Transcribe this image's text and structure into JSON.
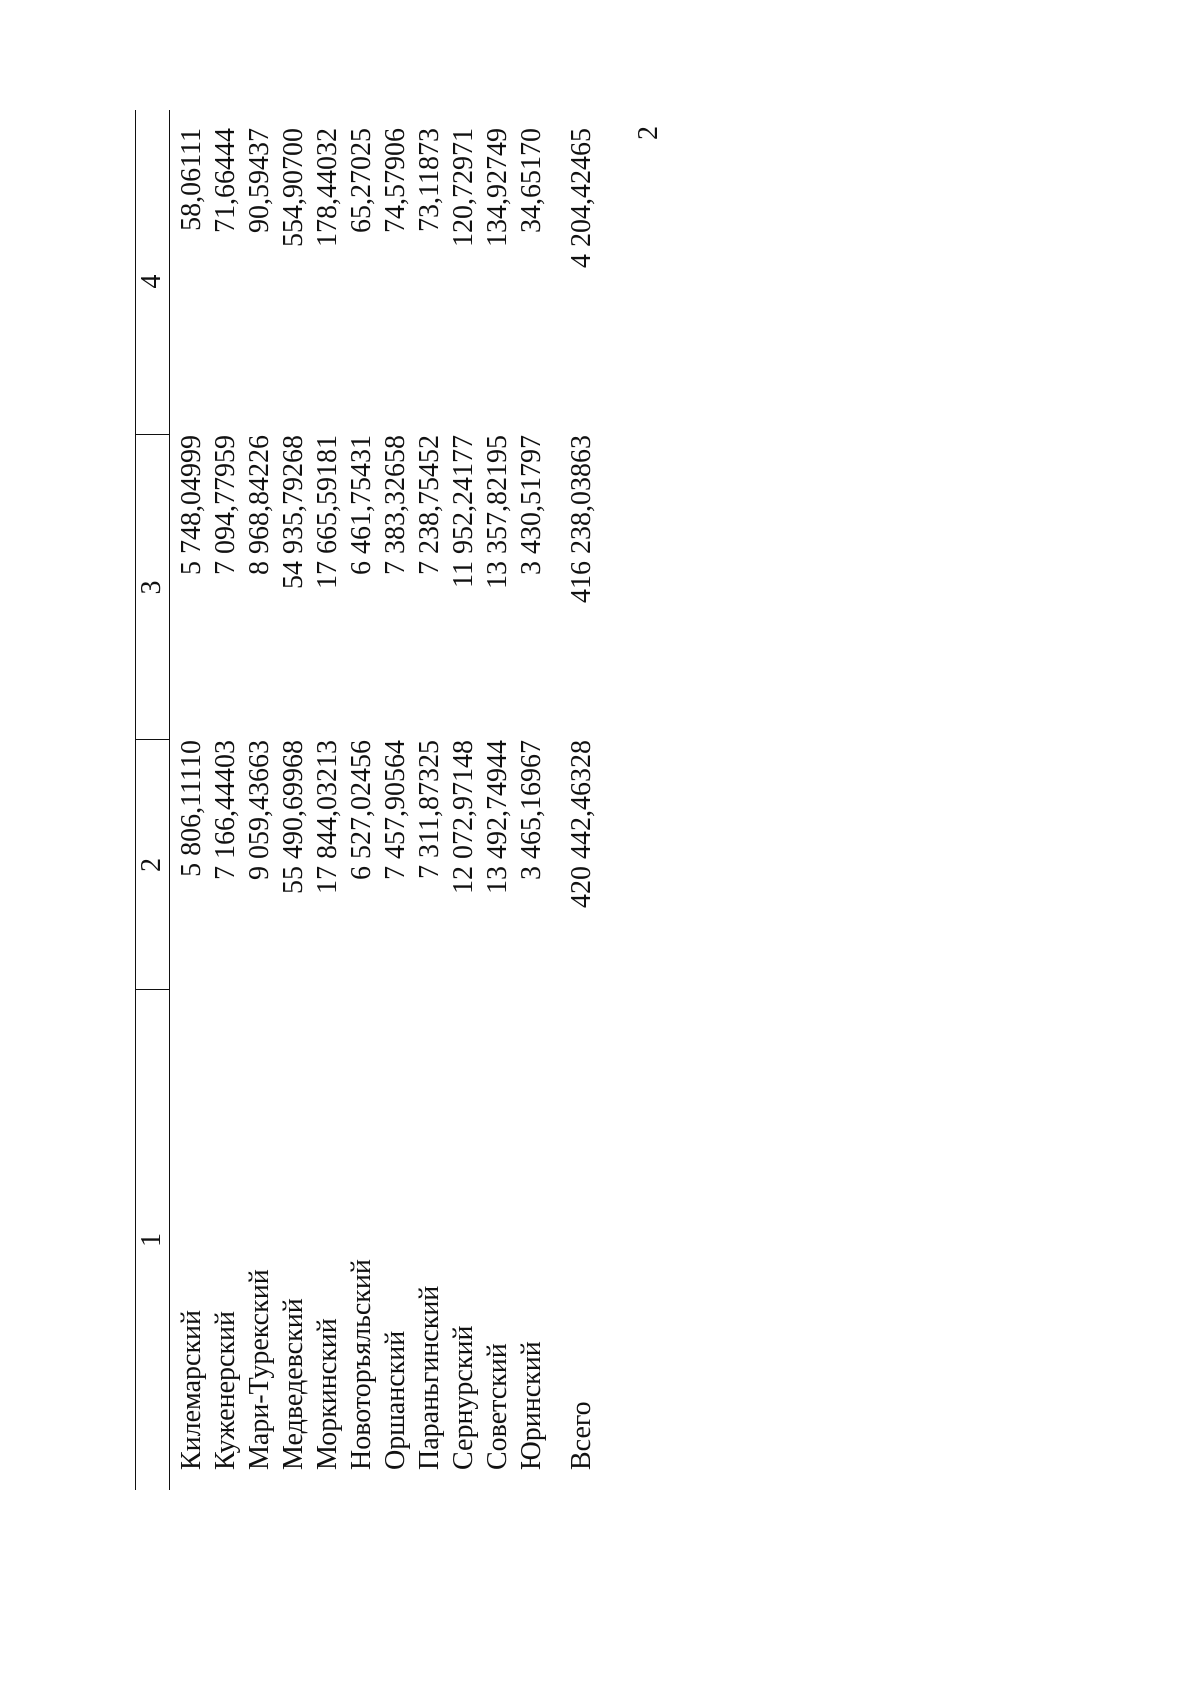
{
  "page_number": "2",
  "table": {
    "header": [
      "1",
      "2",
      "3",
      "4"
    ],
    "rows": [
      [
        "Килемарский",
        "5 806,11110",
        "5 748,04999",
        "58,06111"
      ],
      [
        "Куженерский",
        "7 166,44403",
        "7 094,77959",
        "71,66444"
      ],
      [
        "Мари-Турекский",
        "9 059,43663",
        "8 968,84226",
        "90,59437"
      ],
      [
        "Медведевский",
        "55 490,69968",
        "54 935,79268",
        "554,90700"
      ],
      [
        "Моркинский",
        "17 844,03213",
        "17 665,59181",
        "178,44032"
      ],
      [
        "Новоторъяльский",
        "6 527,02456",
        "6 461,75431",
        "65,27025"
      ],
      [
        "Оршанский",
        "7 457,90564",
        "7 383,32658",
        "74,57906"
      ],
      [
        "Параньгинский",
        "7 311,87325",
        "7 238,75452",
        "73,11873"
      ],
      [
        "Сернурский",
        "12 072,97148",
        "11 952,24177",
        "120,72971"
      ],
      [
        "Советский",
        "13 492,74944",
        "13 357,82195",
        "134,92749"
      ],
      [
        "Юринский",
        "3 465,16967",
        "3 430,51797",
        "34,65170"
      ]
    ],
    "total": [
      "Всего",
      "420 442,46328",
      "416 238,03863",
      "4 204,42465"
    ]
  }
}
